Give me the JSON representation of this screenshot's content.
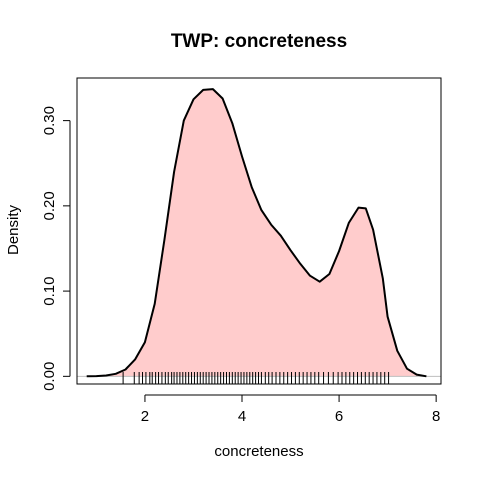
{
  "chart_data": {
    "type": "area",
    "title": "TWP: concreteness",
    "xlabel": "concreteness",
    "ylabel": "Density",
    "xlim": [
      0.6,
      8.1
    ],
    "ylim": [
      -0.009,
      0.35
    ],
    "x_ticks": [
      2,
      4,
      6,
      8
    ],
    "x_tick_labels": [
      "2",
      "4",
      "6",
      "8"
    ],
    "y_ticks": [
      0.0,
      0.1,
      0.2,
      0.3
    ],
    "y_tick_labels": [
      "0.00",
      "0.10",
      "0.20",
      "0.30"
    ],
    "grid": false,
    "fill_color": "#ffcccc",
    "line_color": "#000000",
    "baseline": 0,
    "series": [
      {
        "x": [
          0.8,
          1.0,
          1.2,
          1.4,
          1.6,
          1.8,
          2.0,
          2.2,
          2.4,
          2.6,
          2.8,
          3.0,
          3.2,
          3.4,
          3.6,
          3.8,
          4.0,
          4.2,
          4.4,
          4.6,
          4.8,
          5.0,
          5.2,
          5.4,
          5.6,
          5.8,
          6.0,
          6.2,
          6.4,
          6.55,
          6.7,
          6.9,
          7.0,
          7.2,
          7.4,
          7.6,
          7.8
        ],
        "y": [
          0.0,
          0.0003,
          0.001,
          0.003,
          0.008,
          0.02,
          0.04,
          0.085,
          0.16,
          0.24,
          0.3,
          0.325,
          0.336,
          0.337,
          0.326,
          0.297,
          0.258,
          0.222,
          0.195,
          0.178,
          0.165,
          0.148,
          0.132,
          0.118,
          0.111,
          0.12,
          0.147,
          0.18,
          0.198,
          0.197,
          0.172,
          0.115,
          0.07,
          0.03,
          0.009,
          0.002,
          0.0
        ]
      }
    ],
    "rug": [
      1.55,
      1.78,
      1.88,
      1.95,
      2.02,
      2.1,
      2.15,
      2.22,
      2.28,
      2.35,
      2.42,
      2.48,
      2.55,
      2.6,
      2.66,
      2.72,
      2.78,
      2.84,
      2.9,
      2.96,
      3.02,
      3.08,
      3.14,
      3.2,
      3.26,
      3.32,
      3.38,
      3.44,
      3.5,
      3.56,
      3.62,
      3.68,
      3.74,
      3.8,
      3.86,
      3.92,
      3.98,
      4.04,
      4.1,
      4.16,
      4.22,
      4.28,
      4.34,
      4.4,
      4.48,
      4.55,
      4.62,
      4.7,
      4.78,
      4.86,
      4.94,
      5.02,
      5.1,
      5.18,
      5.26,
      5.34,
      5.42,
      5.5,
      5.58,
      5.68,
      5.78,
      5.88,
      5.98,
      6.06,
      6.14,
      6.22,
      6.3,
      6.38,
      6.46,
      6.54,
      6.62,
      6.7,
      6.78,
      6.86,
      6.94,
      7.02
    ]
  }
}
